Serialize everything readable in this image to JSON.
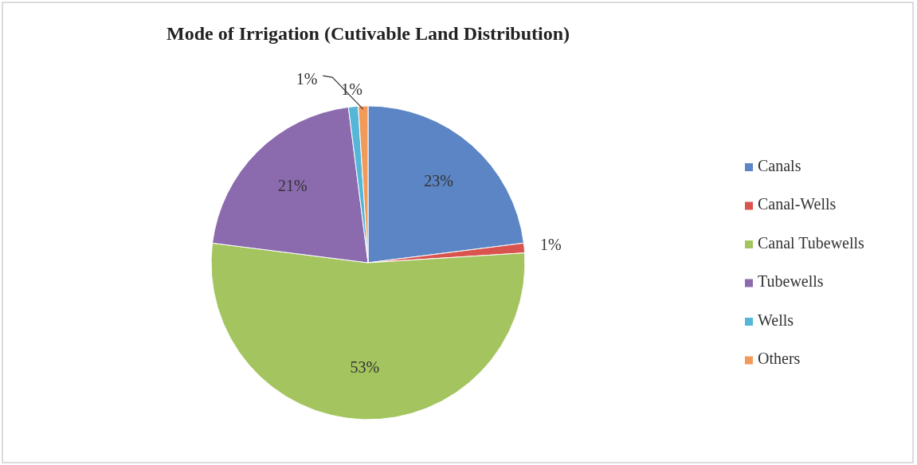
{
  "chart_data": {
    "type": "pie",
    "title": "Mode of Irrigation (Cutivable Land Distribution)",
    "categories": [
      "Canals",
      "Canal-Wells",
      "Canal Tubewells",
      "Tubewells",
      "Wells",
      "Others"
    ],
    "values": [
      23,
      1,
      53,
      21,
      1,
      1
    ],
    "colors": [
      "#5b85c4",
      "#d9534f",
      "#a3c45e",
      "#8b6aae",
      "#55b6d8",
      "#f29a5a"
    ],
    "value_labels": [
      "23%",
      "1%",
      "53%",
      "21%",
      "1%",
      "1%"
    ],
    "legend": "right"
  }
}
